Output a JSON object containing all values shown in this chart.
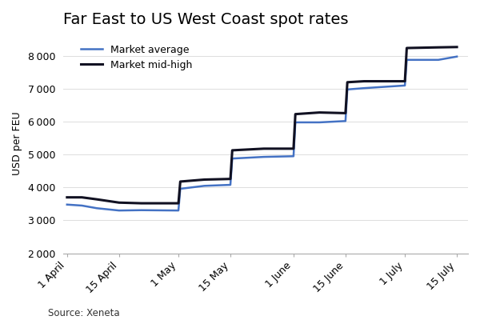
{
  "title": "Far East to US West Coast spot rates",
  "ylabel": "USD per FEU",
  "source": "Source: Xeneta",
  "background_color": "#ffffff",
  "plot_bg_color": "#ffffff",
  "xtick_labels": [
    "1 April",
    "15 April",
    "1 May",
    "15 May",
    "1 June",
    "15 June",
    "1 July",
    "15 July"
  ],
  "xtick_positions": [
    0,
    14,
    30,
    44,
    61,
    75,
    91,
    105
  ],
  "yticks": [
    2000,
    3000,
    4000,
    5000,
    6000,
    7000,
    8000
  ],
  "ylim": [
    2000,
    8700
  ],
  "xlim": [
    -1,
    108
  ],
  "market_average": {
    "label": "Market average",
    "color": "#4472C4",
    "linewidth": 1.8,
    "x": [
      0,
      4,
      8,
      14,
      20,
      30,
      30.5,
      37,
      44,
      44.5,
      53,
      61,
      61.5,
      68,
      75,
      75.5,
      80,
      91,
      91.5,
      100,
      105
    ],
    "y": [
      3480,
      3450,
      3370,
      3300,
      3310,
      3300,
      3960,
      4050,
      4080,
      4880,
      4930,
      4950,
      5980,
      5980,
      6020,
      6980,
      7020,
      7100,
      7880,
      7880,
      7980
    ]
  },
  "market_midhigh": {
    "label": "Market mid-high",
    "color": "#111122",
    "linewidth": 2.2,
    "x": [
      0,
      4,
      8,
      14,
      20,
      30,
      30.5,
      37,
      44,
      44.5,
      53,
      61,
      61.5,
      68,
      75,
      75.5,
      80,
      91,
      91.5,
      100,
      105
    ],
    "y": [
      3700,
      3700,
      3640,
      3540,
      3520,
      3520,
      4180,
      4240,
      4260,
      5130,
      5180,
      5180,
      6230,
      6280,
      6260,
      7200,
      7230,
      7230,
      8240,
      8260,
      8270
    ]
  },
  "grid_color": "#dddddd",
  "spine_color": "#aaaaaa",
  "title_fontsize": 14,
  "label_fontsize": 9,
  "tick_fontsize": 9,
  "legend_fontsize": 9,
  "source_fontsize": 8.5
}
